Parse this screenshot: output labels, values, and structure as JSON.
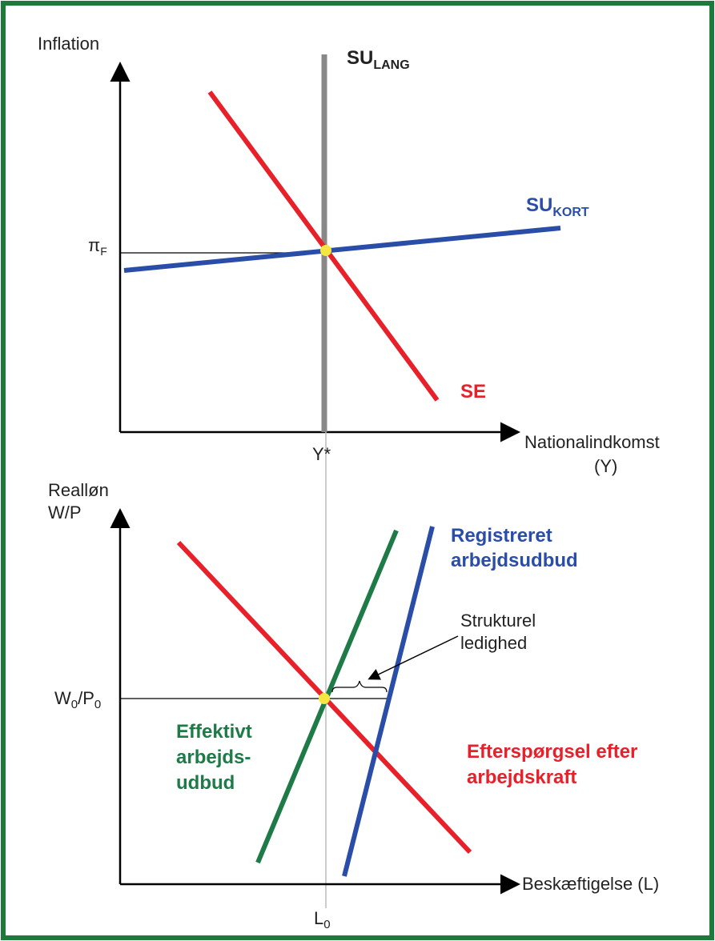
{
  "top_chart": {
    "y_axis_label": "Inflation",
    "x_axis_label": [
      "Nationalindkomst",
      "(Y)"
    ],
    "long_run_supply": {
      "main": "SU",
      "sub": "LANG"
    },
    "short_run_supply": {
      "main": "SU",
      "sub": "KORT"
    },
    "demand": "SE",
    "y_tick": {
      "main": "π",
      "sub": "F"
    },
    "x_tick": "Y*"
  },
  "bottom_chart": {
    "y_axis_label": [
      "Realløn",
      "W/P"
    ],
    "x_axis_label": "Beskæftigelse (L)",
    "registered_supply": [
      "Registreret",
      "arbejdsudbud"
    ],
    "structural_unemployment": [
      "Strukturel",
      "ledighed"
    ],
    "y_tick": {
      "main1": "W",
      "sub1": "0",
      "main2": "/P",
      "sub2": "0"
    },
    "effective_supply": [
      "Effektivt",
      "arbejds-",
      "udbud"
    ],
    "demand": [
      "Efterspørgsel efter",
      "arbejdskraft"
    ],
    "x_tick": {
      "main": "L",
      "sub": "0"
    }
  }
}
